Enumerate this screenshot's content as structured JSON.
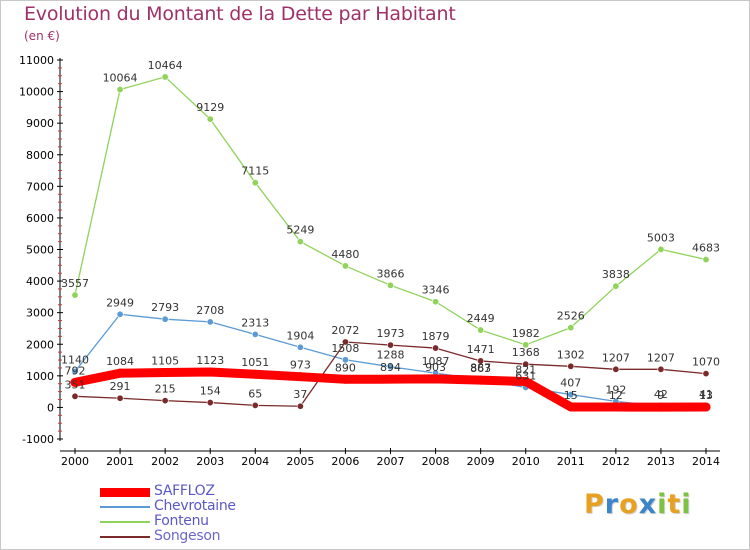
{
  "chart_data": {
    "type": "line",
    "title": "Evolution du Montant de la Dette par Habitant",
    "subtitle": "(en €)",
    "x": [
      "2000",
      "2001",
      "2002",
      "2003",
      "2004",
      "2005",
      "2006",
      "2007",
      "2008",
      "2009",
      "2010",
      "2011",
      "2012",
      "2013",
      "2014"
    ],
    "ylim": [
      -1000,
      11000
    ],
    "yticks": [
      -1000,
      0,
      1000,
      2000,
      3000,
      4000,
      5000,
      6000,
      7000,
      8000,
      9000,
      10000,
      11000
    ],
    "grid": false,
    "legend_position": "bottom-left",
    "series": [
      {
        "name": "SAFFLOZ",
        "color": "#ff0000",
        "values": [
          792,
          1084,
          1105,
          1123,
          1051,
          973,
          890,
          894,
          903,
          863,
          821,
          15,
          12,
          9,
          13
        ]
      },
      {
        "name": "Chevrotaine",
        "color": "#5b9bd5",
        "values": [
          1140,
          2949,
          2793,
          2708,
          2313,
          1904,
          1508,
          1288,
          1087,
          887,
          631,
          407,
          192,
          42,
          41
        ]
      },
      {
        "name": "Fontenu",
        "color": "#8fd35a",
        "values": [
          3557,
          10064,
          10464,
          9129,
          7115,
          5249,
          4480,
          3866,
          3346,
          2449,
          1982,
          2526,
          3838,
          5003,
          4683
        ]
      },
      {
        "name": "Songeson",
        "color": "#7a2a2a",
        "values": [
          351,
          291,
          215,
          154,
          65,
          37,
          2072,
          1973,
          1879,
          1471,
          1368,
          1302,
          1207,
          1207,
          1070
        ]
      }
    ]
  },
  "logo": {
    "letters": [
      "P",
      "r",
      "o",
      "x",
      "i",
      "t",
      "i"
    ],
    "colors": [
      "#e8a020",
      "#3a86c8",
      "#e8a020",
      "#3a86c8",
      "#7cc243",
      "#e8a020",
      "#7cc243"
    ]
  }
}
